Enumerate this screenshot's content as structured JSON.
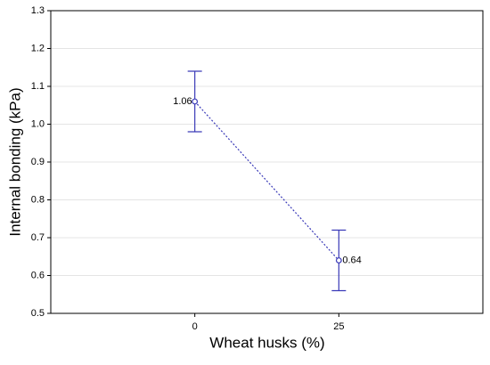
{
  "chart_data": {
    "type": "errorbar",
    "x_label": "Wheat husks (%)",
    "y_label": "Internal bonding (kPa)",
    "categories": [
      "0",
      "25"
    ],
    "values": [
      1.06,
      0.64
    ],
    "errors": [
      0.08,
      0.08
    ],
    "color": "#3a3ab8",
    "ylim": [
      0.5,
      1.3
    ],
    "yticks": [
      0.5,
      0.6,
      0.7,
      0.8,
      0.9,
      {
        "value": 1,
        "label": "1.0"
      },
      1.1,
      1.2,
      1.3
    ],
    "grid": true
  }
}
